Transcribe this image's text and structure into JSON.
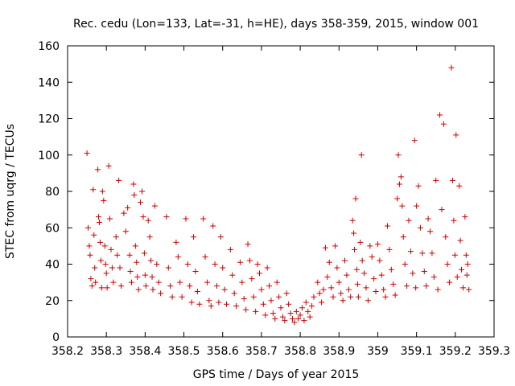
{
  "chart_data": {
    "type": "scatter",
    "title": "Rec. cedu (Lon=133, Lat=-31, h=HE), days 358-359, 2015, window 001",
    "xlabel": "GPS time / Days of year 2015",
    "ylabel": "STEC from uqrg / TECUs",
    "xlim": [
      358.2,
      359.3
    ],
    "ylim": [
      0,
      160
    ],
    "xticks": [
      "358.2",
      "358.3",
      "358.4",
      "358.5",
      "358.6",
      "358.7",
      "358.8",
      "358.9",
      "359",
      "359.1",
      "359.2",
      "359.3"
    ],
    "yticks": [
      "0",
      "20",
      "40",
      "60",
      "80",
      "100",
      "120",
      "140",
      "160"
    ],
    "grid": false,
    "legend": "none",
    "marker": "plus",
    "color": "#cc0000",
    "series": [
      {
        "points": [
          [
            358.25,
            101
          ],
          [
            358.253,
            60
          ],
          [
            358.256,
            50
          ],
          [
            358.258,
            45
          ],
          [
            358.26,
            32
          ],
          [
            358.263,
            28
          ],
          [
            358.266,
            81
          ],
          [
            358.268,
            56
          ],
          [
            358.27,
            38
          ],
          [
            358.272,
            30
          ],
          [
            358.278,
            92
          ],
          [
            358.28,
            66
          ],
          [
            358.282,
            63
          ],
          [
            358.284,
            52
          ],
          [
            358.286,
            42
          ],
          [
            358.288,
            27
          ],
          [
            358.29,
            80
          ],
          [
            358.293,
            75
          ],
          [
            358.296,
            50
          ],
          [
            358.298,
            40
          ],
          [
            358.3,
            35
          ],
          [
            358.302,
            27
          ],
          [
            358.306,
            94
          ],
          [
            358.309,
            65
          ],
          [
            358.312,
            48
          ],
          [
            358.315,
            38
          ],
          [
            358.318,
            30
          ],
          [
            358.325,
            55
          ],
          [
            358.328,
            45
          ],
          [
            358.332,
            86
          ],
          [
            358.335,
            38
          ],
          [
            358.338,
            28
          ],
          [
            358.345,
            68
          ],
          [
            358.35,
            58
          ],
          [
            358.355,
            71
          ],
          [
            358.36,
            45
          ],
          [
            358.362,
            36
          ],
          [
            358.365,
            30
          ],
          [
            358.37,
            84
          ],
          [
            358.372,
            78
          ],
          [
            358.375,
            50
          ],
          [
            358.378,
            41
          ],
          [
            358.38,
            33
          ],
          [
            358.383,
            26
          ],
          [
            358.388,
            74
          ],
          [
            358.392,
            80
          ],
          [
            358.395,
            66
          ],
          [
            358.398,
            46
          ],
          [
            358.4,
            34
          ],
          [
            358.402,
            28
          ],
          [
            358.408,
            64
          ],
          [
            358.412,
            55
          ],
          [
            358.415,
            42
          ],
          [
            358.418,
            33
          ],
          [
            358.42,
            26
          ],
          [
            358.425,
            72
          ],
          [
            358.43,
            40
          ],
          [
            358.435,
            30
          ],
          [
            358.44,
            24
          ],
          [
            358.455,
            66
          ],
          [
            358.46,
            38
          ],
          [
            358.465,
            28
          ],
          [
            358.47,
            22
          ],
          [
            358.48,
            52
          ],
          [
            358.485,
            44
          ],
          [
            358.49,
            30
          ],
          [
            358.495,
            22
          ],
          [
            358.505,
            65
          ],
          [
            358.51,
            40
          ],
          [
            358.515,
            28
          ],
          [
            358.52,
            19
          ],
          [
            358.525,
            55
          ],
          [
            358.53,
            36
          ],
          [
            358.535,
            25
          ],
          [
            358.54,
            18
          ],
          [
            358.55,
            65
          ],
          [
            358.555,
            44
          ],
          [
            358.56,
            30
          ],
          [
            358.565,
            20
          ],
          [
            358.57,
            17
          ],
          [
            358.575,
            61
          ],
          [
            358.58,
            40
          ],
          [
            358.585,
            28
          ],
          [
            358.59,
            19
          ],
          [
            358.595,
            55
          ],
          [
            358.6,
            38
          ],
          [
            358.605,
            26
          ],
          [
            358.61,
            18
          ],
          [
            358.62,
            48
          ],
          [
            358.625,
            34
          ],
          [
            358.63,
            24
          ],
          [
            358.635,
            17
          ],
          [
            358.645,
            41
          ],
          [
            358.65,
            30
          ],
          [
            358.655,
            21
          ],
          [
            358.66,
            15
          ],
          [
            358.665,
            51
          ],
          [
            358.67,
            42
          ],
          [
            358.675,
            32
          ],
          [
            358.68,
            22
          ],
          [
            358.685,
            14
          ],
          [
            358.69,
            40
          ],
          [
            358.695,
            35
          ],
          [
            358.7,
            26
          ],
          [
            358.705,
            18
          ],
          [
            358.71,
            12
          ],
          [
            358.715,
            38
          ],
          [
            358.72,
            28
          ],
          [
            358.725,
            20
          ],
          [
            358.73,
            13
          ],
          [
            358.735,
            10
          ],
          [
            358.74,
            30
          ],
          [
            358.745,
            22
          ],
          [
            358.75,
            16
          ],
          [
            358.755,
            11
          ],
          [
            358.76,
            9
          ],
          [
            358.765,
            24
          ],
          [
            358.77,
            18
          ],
          [
            358.775,
            13
          ],
          [
            358.78,
            10
          ],
          [
            358.785,
            8
          ],
          [
            358.79,
            14
          ],
          [
            358.795,
            10
          ],
          [
            358.8,
            12
          ],
          [
            358.805,
            16
          ],
          [
            358.81,
            9
          ],
          [
            358.815,
            19
          ],
          [
            358.82,
            14
          ],
          [
            358.825,
            11
          ],
          [
            358.83,
            17
          ],
          [
            358.835,
            22
          ],
          [
            358.845,
            30
          ],
          [
            358.85,
            24
          ],
          [
            358.855,
            19
          ],
          [
            358.86,
            26
          ],
          [
            358.865,
            49
          ],
          [
            358.87,
            33
          ],
          [
            358.875,
            41
          ],
          [
            358.88,
            27
          ],
          [
            358.885,
            22
          ],
          [
            358.89,
            50
          ],
          [
            358.895,
            38
          ],
          [
            358.9,
            30
          ],
          [
            358.905,
            24
          ],
          [
            358.91,
            20
          ],
          [
            358.915,
            42
          ],
          [
            358.92,
            34
          ],
          [
            358.925,
            26
          ],
          [
            358.93,
            22
          ],
          [
            358.935,
            64
          ],
          [
            358.938,
            57
          ],
          [
            358.94,
            48
          ],
          [
            358.943,
            76
          ],
          [
            358.946,
            37
          ],
          [
            358.948,
            29
          ],
          [
            358.95,
            22
          ],
          [
            358.955,
            52
          ],
          [
            358.958,
            100
          ],
          [
            358.96,
            42
          ],
          [
            358.965,
            35
          ],
          [
            358.97,
            27
          ],
          [
            358.975,
            20
          ],
          [
            358.98,
            50
          ],
          [
            358.985,
            44
          ],
          [
            358.99,
            32
          ],
          [
            358.995,
            25
          ],
          [
            359.0,
            51
          ],
          [
            359.005,
            42
          ],
          [
            359.01,
            34
          ],
          [
            359.015,
            26
          ],
          [
            359.02,
            22
          ],
          [
            359.025,
            61
          ],
          [
            359.03,
            48
          ],
          [
            359.035,
            37
          ],
          [
            359.04,
            29
          ],
          [
            359.045,
            23
          ],
          [
            359.05,
            76
          ],
          [
            359.053,
            100
          ],
          [
            359.056,
            84
          ],
          [
            359.06,
            88
          ],
          [
            359.063,
            72
          ],
          [
            359.066,
            55
          ],
          [
            359.07,
            40
          ],
          [
            359.075,
            28
          ],
          [
            359.08,
            64
          ],
          [
            359.085,
            47
          ],
          [
            359.09,
            35
          ],
          [
            359.095,
            108
          ],
          [
            359.098,
            27
          ],
          [
            359.1,
            72
          ],
          [
            359.105,
            83
          ],
          [
            359.11,
            60
          ],
          [
            359.115,
            46
          ],
          [
            359.12,
            36
          ],
          [
            359.125,
            28
          ],
          [
            359.13,
            65
          ],
          [
            359.135,
            58
          ],
          [
            359.14,
            46
          ],
          [
            359.145,
            33
          ],
          [
            359.15,
            86
          ],
          [
            359.155,
            26
          ],
          [
            359.16,
            122
          ],
          [
            359.165,
            70
          ],
          [
            359.17,
            117
          ],
          [
            359.175,
            55
          ],
          [
            359.18,
            40
          ],
          [
            359.185,
            30
          ],
          [
            359.19,
            148
          ],
          [
            359.193,
            86
          ],
          [
            359.196,
            64
          ],
          [
            359.199,
            45
          ],
          [
            359.202,
            111
          ],
          [
            359.205,
            33
          ],
          [
            359.21,
            83
          ],
          [
            359.213,
            53
          ],
          [
            359.216,
            37
          ],
          [
            359.22,
            27
          ],
          [
            359.225,
            66
          ],
          [
            359.228,
            45
          ],
          [
            359.23,
            34
          ],
          [
            359.232,
            40
          ],
          [
            359.235,
            26
          ]
        ]
      }
    ]
  }
}
